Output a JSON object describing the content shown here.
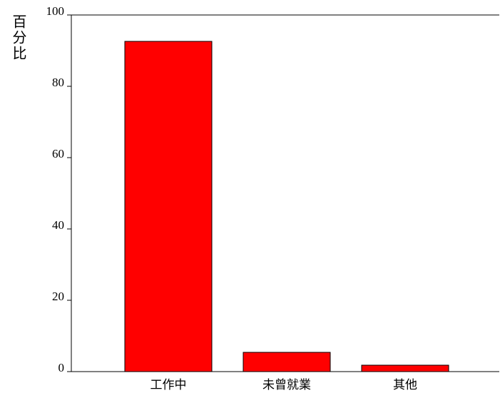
{
  "chart_data": {
    "type": "bar",
    "y_label": "百分比",
    "categories": [
      "工作中",
      "未曾就業",
      "其他"
    ],
    "values": [
      92.6,
      5.4,
      1.8
    ],
    "color": "#ff0000",
    "ylim": [
      0,
      100
    ],
    "yticks": [
      0,
      20,
      40,
      60,
      80,
      100
    ]
  }
}
